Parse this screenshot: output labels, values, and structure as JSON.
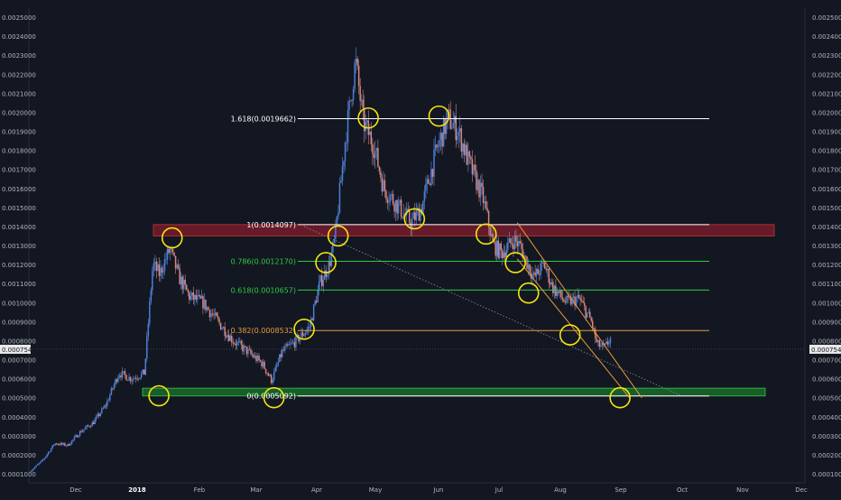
{
  "chart_data": {
    "type": "candlestick",
    "title": "",
    "price_axis": {
      "min": 0.0001,
      "max": 0.0025,
      "step": 0.0001,
      "decimals": 7,
      "labels_both_sides": true
    },
    "time_axis": {
      "labels": [
        "Dec",
        "2018",
        "Feb",
        "Mar",
        "Apr",
        "May",
        "Jun",
        "Jul",
        "Aug",
        "Sep",
        "Oct",
        "Nov",
        "Dec"
      ],
      "bold_label": "2018"
    },
    "current_price": {
      "value": 0.0007547,
      "label": "0.0007547"
    },
    "colors": {
      "background": "#131722",
      "axis_text": "#b2b5be",
      "up": "#4a7fd9",
      "down": "#d9867a",
      "wick": "#7f8591",
      "fib_white": "#ffffff",
      "fib_green": "#2ecc40",
      "fib_orange": "#e69b3a",
      "resistance_zone": "#8b1d2c",
      "support_zone": "#1e7a2e",
      "channel": "#e69b3a",
      "circle": "#f5e50e",
      "dotted_trend": "#8a8f99"
    },
    "fib_levels": [
      {
        "label": "1.618(0.0019662)",
        "price": 0.0019662,
        "color": "#ffffff",
        "text_color": "#ffffff"
      },
      {
        "label": "1(0.0014097)",
        "price": 0.0014097,
        "color": "#ffffff",
        "text_color": "#ffffff"
      },
      {
        "label": "0.786(0.0012170)",
        "price": 0.001217,
        "color": "#2ecc40",
        "text_color": "#2ecc40"
      },
      {
        "label": "0.618(0.0010657)",
        "price": 0.0010657,
        "color": "#2ecc40",
        "text_color": "#2ecc40"
      },
      {
        "label": "0.382(0.0008532)",
        "price": 0.0008532,
        "color": "#e69b3a",
        "text_color": "#e69b3a"
      },
      {
        "label": "0(0.0005092)",
        "price": 0.0005092,
        "color": "#ffffff",
        "text_color": "#ffffff"
      }
    ],
    "zones": [
      {
        "name": "resistance",
        "top": 0.0014097,
        "bottom": 0.00135
      },
      {
        "name": "support",
        "top": 0.00055,
        "bottom": 0.0005092
      }
    ],
    "price_path": [
      [
        0.0,
        0.00011
      ],
      [
        1.4,
        0.00017
      ],
      [
        2.7,
        0.00026
      ],
      [
        4.1,
        0.00025
      ],
      [
        5.4,
        0.00032
      ],
      [
        6.8,
        0.00037
      ],
      [
        8.1,
        0.00046
      ],
      [
        9.5,
        0.00063
      ],
      [
        10.8,
        0.0006
      ],
      [
        12.2,
        0.00063
      ],
      [
        12.5,
        0.00082
      ],
      [
        13.1,
        0.0012
      ],
      [
        13.8,
        0.00115
      ],
      [
        14.9,
        0.00128
      ],
      [
        15.9,
        0.00113
      ],
      [
        17.0,
        0.00103
      ],
      [
        18.4,
        0.001
      ],
      [
        20.0,
        0.0009
      ],
      [
        21.6,
        0.0008
      ],
      [
        23.2,
        0.00074
      ],
      [
        24.7,
        0.00068
      ],
      [
        25.7,
        0.00059
      ],
      [
        26.8,
        0.00074
      ],
      [
        28.1,
        0.00079
      ],
      [
        29.7,
        0.00087
      ],
      [
        30.8,
        0.0011
      ],
      [
        31.8,
        0.0012
      ],
      [
        32.4,
        0.00133
      ],
      [
        33.5,
        0.00185
      ],
      [
        34.6,
        0.00227
      ],
      [
        35.4,
        0.00195
      ],
      [
        36.5,
        0.00183
      ],
      [
        37.6,
        0.0016
      ],
      [
        39.2,
        0.0015
      ],
      [
        40.5,
        0.00142
      ],
      [
        41.6,
        0.0015
      ],
      [
        43.2,
        0.0018
      ],
      [
        44.4,
        0.00197
      ],
      [
        45.5,
        0.0019
      ],
      [
        46.5,
        0.00175
      ],
      [
        48.1,
        0.00155
      ],
      [
        49.2,
        0.0013
      ],
      [
        50.1,
        0.00126
      ],
      [
        51.4,
        0.00133
      ],
      [
        52.0,
        0.0013
      ],
      [
        53.5,
        0.00113
      ],
      [
        54.6,
        0.0012
      ],
      [
        55.5,
        0.00108
      ],
      [
        56.9,
        0.001
      ],
      [
        58.3,
        0.00102
      ],
      [
        59.6,
        0.0009
      ],
      [
        60.2,
        0.00078
      ],
      [
        61.0,
        0.00076
      ],
      [
        61.6,
        0.00081
      ]
    ],
    "dotted_trend": {
      "from": [
        29.0,
        0.0014
      ],
      "to": [
        69.0,
        0.00051
      ]
    },
    "channel_lines": [
      {
        "from": [
          51.6,
          0.00142
        ],
        "to": [
          64.8,
          0.0005
        ]
      },
      {
        "from": [
          51.6,
          0.00123
        ],
        "to": [
          63.5,
          0.0005
        ]
      }
    ],
    "circles": [
      [
        13.6,
        0.00051
      ],
      [
        15.0,
        0.00134
      ],
      [
        25.8,
        0.0005
      ],
      [
        29.0,
        0.00086
      ],
      [
        31.3,
        0.00121
      ],
      [
        32.6,
        0.00135
      ],
      [
        35.8,
        0.00197
      ],
      [
        40.7,
        0.00144
      ],
      [
        43.3,
        0.00198
      ],
      [
        48.3,
        0.00136
      ],
      [
        51.4,
        0.00121
      ],
      [
        52.8,
        0.00105
      ],
      [
        57.2,
        0.00083
      ],
      [
        62.5,
        0.0005
      ]
    ]
  }
}
